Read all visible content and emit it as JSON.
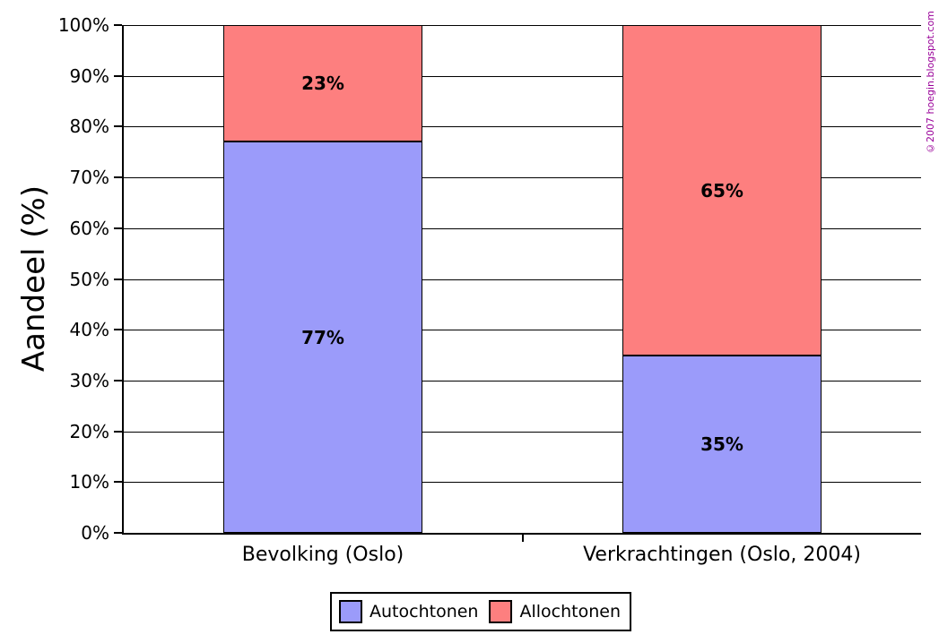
{
  "chart_data": {
    "type": "stacked_bar",
    "title": "",
    "ylabel": "Aandeel (%)",
    "xlabel": "",
    "ylim": [
      0,
      100
    ],
    "ytick_step": 10,
    "ytick_labels": [
      "0%",
      "10%",
      "20%",
      "30%",
      "40%",
      "50%",
      "60%",
      "70%",
      "80%",
      "90%",
      "100%"
    ],
    "grid": true,
    "legend_position": "bottom",
    "categories": [
      "Bevolking (Oslo)",
      "Verkrachtingen (Oslo, 2004)"
    ],
    "series": [
      {
        "name": "Autochtonen",
        "color": "#9b9bfa",
        "values": [
          77,
          35
        ],
        "pattern": "dots"
      },
      {
        "name": "Allochtonen",
        "color": "#fd7f7f",
        "values": [
          23,
          65
        ],
        "pattern": "none"
      }
    ],
    "value_label_suffix": "%",
    "value_labels": [
      [
        "77%",
        "23%"
      ],
      [
        "35%",
        "65%"
      ]
    ]
  },
  "watermark": {
    "text": "©2007 hoegin.blogspot.com",
    "color": "#990099"
  },
  "colors": {
    "axis": "#000000",
    "gridline": "#000000",
    "background": "#ffffff"
  }
}
